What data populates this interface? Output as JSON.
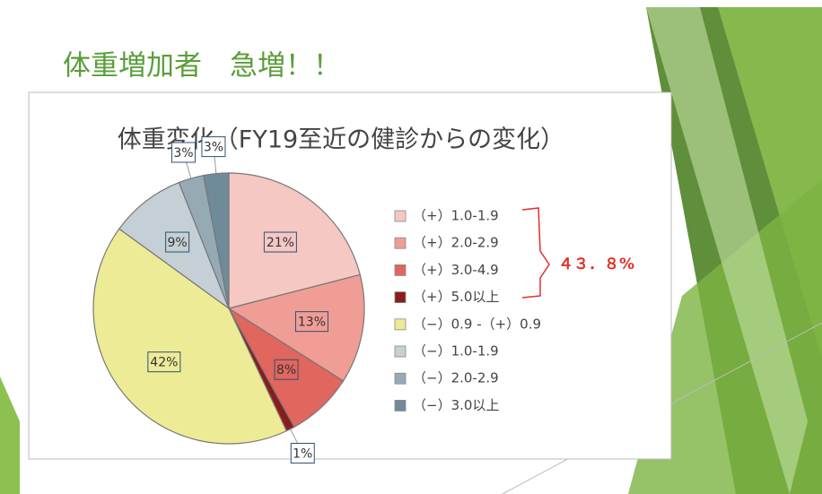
{
  "slide_title": "体重増加者　急増！！",
  "chart_data": {
    "type": "pie",
    "title": "体重変化（FY19至近の健診からの変化）",
    "categories": [
      "（+）1.0-1.9",
      "（+）2.0-2.9",
      "（+）3.0-4.9",
      "（+）5.0以上",
      "（−）0.9 -（+）0.9",
      "（−）1.0-1.9",
      "（−）2.0-2.9",
      "（−）3.0以上"
    ],
    "values": [
      21,
      13,
      8,
      1,
      42,
      9,
      3,
      3
    ],
    "value_labels": [
      "21%",
      "13%",
      "8%",
      "1%",
      "42%",
      "9%",
      "3%",
      "3%"
    ],
    "colors": [
      "#f5c8c4",
      "#f09d96",
      "#e0665e",
      "#8b1c1c",
      "#eeeb97",
      "#c5d0d6",
      "#96aab6",
      "#6f8b9a"
    ],
    "annotation": "４３．８%",
    "legend": "right"
  }
}
